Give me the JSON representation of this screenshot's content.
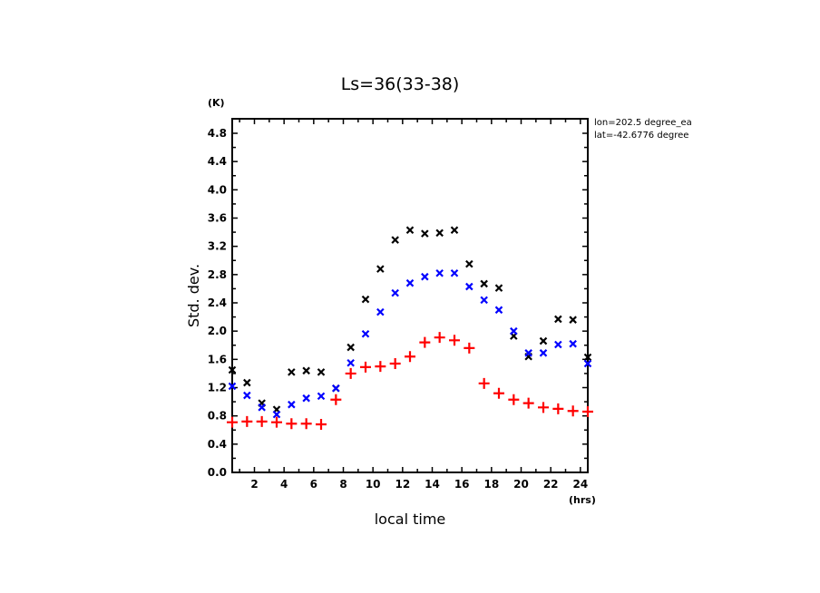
{
  "chart_data": {
    "type": "scatter",
    "title": "Ls=36(33-38)",
    "xlabel": "local time",
    "ylabel": "Std. dev.",
    "x_unit": "(hrs)",
    "y_unit": "(K)",
    "xlim": [
      0.5,
      24.5
    ],
    "ylim": [
      0.0,
      4.95
    ],
    "xticks": [
      2,
      4,
      6,
      8,
      10,
      12,
      14,
      16,
      18,
      20,
      22,
      24
    ],
    "yticks": [
      0.0,
      0.4,
      0.8,
      1.2,
      1.6,
      2.0,
      2.4,
      2.8,
      3.2,
      3.6,
      4.0,
      4.4,
      4.8
    ],
    "ytick_labels": [
      "0.0",
      "0.4",
      "0.8",
      "1.2",
      "1.6",
      "2.0",
      "2.4",
      "2.8",
      "3.2",
      "3.6",
      "4.0",
      "4.4",
      "4.8"
    ],
    "grid": false,
    "annotations": [
      "lon=202.5 degree_ea",
      "lat=-42.6776 degree"
    ],
    "x": [
      0.5,
      1.5,
      2.5,
      3.5,
      4.5,
      5.5,
      6.5,
      7.5,
      8.5,
      9.5,
      10.5,
      11.5,
      12.5,
      13.5,
      14.5,
      15.5,
      16.5,
      17.5,
      18.5,
      19.5,
      20.5,
      21.5,
      22.5,
      23.5,
      24.5
    ],
    "series": [
      {
        "name": "black",
        "marker": "x",
        "color": "#000000",
        "values": [
          1.45,
          1.27,
          0.98,
          0.89,
          1.42,
          1.44,
          1.42,
          1.19,
          1.77,
          2.45,
          2.88,
          3.29,
          3.43,
          3.38,
          3.39,
          3.43,
          2.95,
          2.67,
          2.61,
          1.93,
          1.64,
          1.86,
          2.17,
          2.16,
          1.63
        ]
      },
      {
        "name": "blue",
        "marker": "x",
        "color": "#0000ff",
        "values": [
          1.22,
          1.09,
          0.92,
          0.82,
          0.96,
          1.05,
          1.08,
          1.19,
          1.55,
          1.96,
          2.27,
          2.54,
          2.68,
          2.77,
          2.82,
          2.82,
          2.63,
          2.44,
          2.3,
          2.0,
          1.69,
          1.69,
          1.81,
          1.82,
          1.54
        ]
      },
      {
        "name": "red",
        "marker": "+",
        "color": "#ff0000",
        "values": [
          0.71,
          0.72,
          0.72,
          0.71,
          0.69,
          0.69,
          0.68,
          1.03,
          1.4,
          1.49,
          1.5,
          1.54,
          1.64,
          1.84,
          1.91,
          1.87,
          1.76,
          1.26,
          1.12,
          1.03,
          0.98,
          0.92,
          0.9,
          0.87,
          0.86
        ]
      }
    ]
  }
}
